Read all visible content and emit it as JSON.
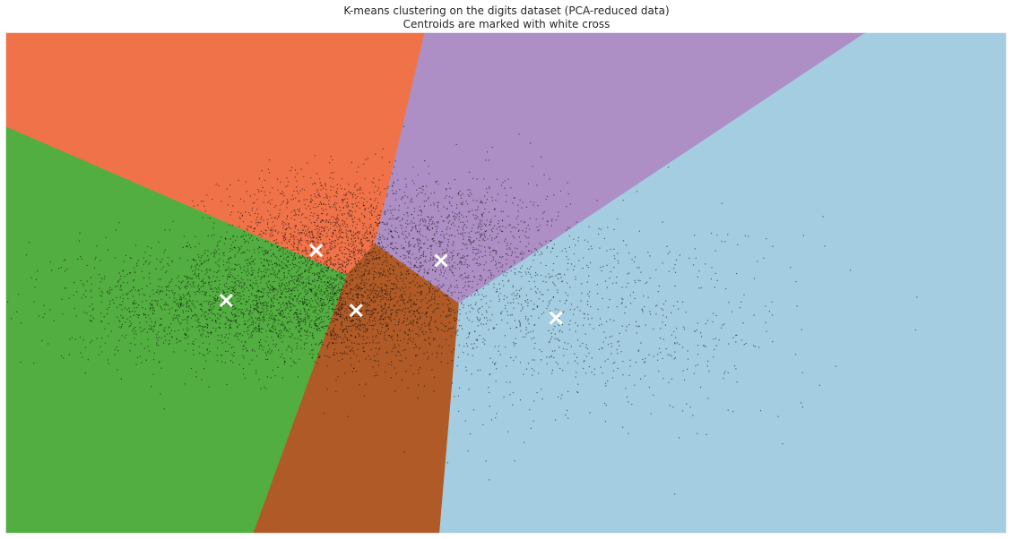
{
  "chart_data": {
    "type": "scatter",
    "title": "K-means clustering on the digits dataset (PCA-reduced data)",
    "subtitle": "Centroids are marked with white cross",
    "xlabel": "",
    "ylabel": "",
    "xlim": [
      -1,
      1
    ],
    "ylim": [
      -1,
      1
    ],
    "axes_visible": false,
    "grid": false,
    "legend": "none",
    "region_colors": [
      "#f07249",
      "#ae8fc5",
      "#a5cde2",
      "#b05a27",
      "#53ae41"
    ],
    "point_color": "#000000",
    "centroid_color": "#ffffff",
    "regions": [
      {
        "color": "#f07249",
        "polygon": [
          [
            -1.0,
            1.0
          ],
          [
            -0.163,
            1.0
          ],
          [
            -0.262,
            0.156
          ],
          [
            -0.319,
            0.031
          ],
          [
            -1.0,
            0.624
          ]
        ]
      },
      {
        "color": "#ae8fc5",
        "polygon": [
          [
            -0.163,
            1.0
          ],
          [
            0.718,
            1.0
          ],
          [
            -0.095,
            -0.082
          ],
          [
            -0.262,
            0.156
          ]
        ]
      },
      {
        "color": "#a5cde2",
        "polygon": [
          [
            0.718,
            1.0
          ],
          [
            1.0,
            1.0
          ],
          [
            1.0,
            -1.0
          ],
          [
            -0.134,
            -1.0
          ],
          [
            -0.095,
            -0.082
          ]
        ]
      },
      {
        "color": "#b05a27",
        "polygon": [
          [
            -0.262,
            0.156
          ],
          [
            -0.095,
            -0.082
          ],
          [
            -0.134,
            -1.0
          ],
          [
            -0.506,
            -1.0
          ],
          [
            -0.319,
            0.031
          ]
        ]
      },
      {
        "color": "#53ae41",
        "polygon": [
          [
            -1.0,
            0.624
          ],
          [
            -0.319,
            0.031
          ],
          [
            -0.506,
            -1.0
          ],
          [
            -1.0,
            -1.0
          ]
        ]
      }
    ],
    "clusters": [
      {
        "center": [
          -0.37,
          0.18
        ],
        "spread": [
          0.1,
          0.13
        ],
        "count": 1400
      },
      {
        "center": [
          -0.11,
          0.18
        ],
        "spread": [
          0.12,
          0.13
        ],
        "count": 1000
      },
      {
        "center": [
          -0.31,
          -0.11
        ],
        "spread": [
          0.13,
          0.1
        ],
        "count": 1500
      },
      {
        "center": [
          -0.58,
          -0.08
        ],
        "spread": [
          0.15,
          0.12
        ],
        "count": 1500
      },
      {
        "center": [
          0.12,
          -0.16
        ],
        "spread": [
          0.22,
          0.2
        ],
        "count": 900
      }
    ],
    "centroids": [
      [
        -0.38,
        0.13
      ],
      [
        -0.13,
        0.09
      ],
      [
        0.1,
        -0.14
      ],
      [
        -0.3,
        -0.11
      ],
      [
        -0.56,
        -0.07
      ]
    ]
  }
}
